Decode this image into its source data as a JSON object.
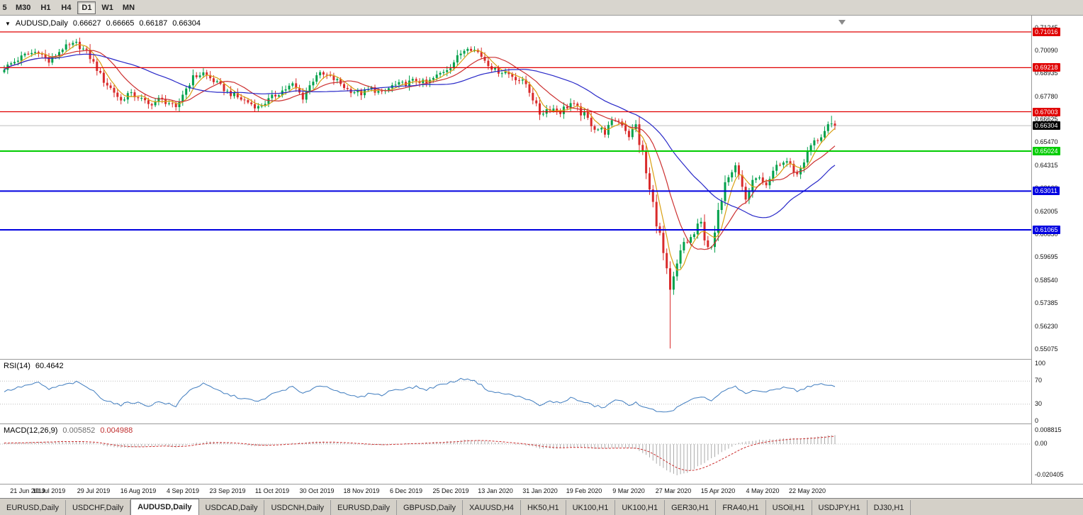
{
  "toolbar": {
    "periods": [
      {
        "label": "5",
        "active": false,
        "partial": true
      },
      {
        "label": "M30",
        "active": false
      },
      {
        "label": "H1",
        "active": false
      },
      {
        "label": "H4",
        "active": false
      },
      {
        "label": "D1",
        "active": true
      },
      {
        "label": "W1",
        "active": false
      },
      {
        "label": "MN",
        "active": false
      }
    ]
  },
  "header": {
    "symbol": "AUDUSD,Daily",
    "open": "0.66627",
    "high": "0.66665",
    "low": "0.66187",
    "close": "0.66304"
  },
  "rsi_header": {
    "name": "RSI(14)",
    "value": "60.4642"
  },
  "macd_header": {
    "name": "MACD(12,26,9)",
    "macd_value": "0.005852",
    "signal_value": "0.004988"
  },
  "tabs": [
    {
      "label": "EURUSD,Daily",
      "active": false
    },
    {
      "label": "USDCHF,Daily",
      "active": false
    },
    {
      "label": "AUDUSD,Daily",
      "active": true
    },
    {
      "label": "USDCAD,Daily",
      "active": false
    },
    {
      "label": "USDCNH,Daily",
      "active": false
    },
    {
      "label": "EURUSD,Daily",
      "active": false
    },
    {
      "label": "GBPUSD,Daily",
      "active": false
    },
    {
      "label": "XAUUSD,H4",
      "active": false
    },
    {
      "label": "HK50,H1",
      "active": false
    },
    {
      "label": "UK100,H1",
      "active": false
    },
    {
      "label": "UK100,H1",
      "active": false
    },
    {
      "label": "GER30,H1",
      "active": false
    },
    {
      "label": "FRA40,H1",
      "active": false
    },
    {
      "label": "USOil,H1",
      "active": false
    },
    {
      "label": "USDJPY,H1",
      "active": false
    },
    {
      "label": "DJ30,H1",
      "active": false
    }
  ],
  "chart_data": {
    "type": "candlestick",
    "symbol": "AUDUSD",
    "timeframe": "Daily",
    "ohlc": {
      "open": 0.66627,
      "high": 0.66665,
      "low": 0.66187,
      "close": 0.66304
    },
    "candle_count": 243,
    "y_axis": {
      "first_tick": 0.71245,
      "tick_step": 0.01155,
      "tick_count": 15
    },
    "x_labels": [
      "21 Jun 2019",
      "10 Jul 2019",
      "29 Jul 2019",
      "16 Aug 2019",
      "4 Sep 2019",
      "23 Sep 2019",
      "11 Oct 2019",
      "30 Oct 2019",
      "18 Nov 2019",
      "6 Dec 2019",
      "25 Dec 2019",
      "13 Jan 2020",
      "31 Jan 2020",
      "19 Feb 2020",
      "9 Mar 2020",
      "27 Mar 2020",
      "15 Apr 2020",
      "4 May 2020",
      "22 May 2020"
    ],
    "hlines": [
      {
        "price": 0.71016,
        "color": "#e00000",
        "width": 1.3
      },
      {
        "price": 0.69218,
        "color": "#e00000",
        "width": 1.3
      },
      {
        "price": 0.67003,
        "color": "#e00000",
        "width": 1.3
      },
      {
        "price": 0.65024,
        "color": "#00cc00",
        "width": 2
      },
      {
        "price": 0.63011,
        "color": "#0000e0",
        "width": 2
      },
      {
        "price": 0.61065,
        "color": "#0000e0",
        "width": 2
      }
    ],
    "bid_price": 0.66304,
    "colors": {
      "up": "#00a14b",
      "down": "#d92b2b",
      "bid_line": "#bdbdbd"
    },
    "moving_averages": [
      {
        "period": 5,
        "color": "#d9a012"
      },
      {
        "period": 13,
        "color": "#cc3030"
      },
      {
        "period": 34,
        "color": "#2828c8"
      }
    ],
    "price_anchors": [
      [
        0,
        0.692
      ],
      [
        6,
        0.6985
      ],
      [
        10,
        0.7005
      ],
      [
        13,
        0.695
      ],
      [
        17,
        0.702
      ],
      [
        21,
        0.7042
      ],
      [
        24,
        0.7
      ],
      [
        26,
        0.6945
      ],
      [
        29,
        0.6855
      ],
      [
        32,
        0.68
      ],
      [
        34,
        0.6755
      ],
      [
        36,
        0.679
      ],
      [
        39,
        0.6775
      ],
      [
        42,
        0.6735
      ],
      [
        45,
        0.6762
      ],
      [
        48,
        0.6745
      ],
      [
        50,
        0.6712
      ],
      [
        52,
        0.679
      ],
      [
        55,
        0.6872
      ],
      [
        58,
        0.6895
      ],
      [
        61,
        0.6855
      ],
      [
        65,
        0.68
      ],
      [
        68,
        0.6772
      ],
      [
        71,
        0.6748
      ],
      [
        74,
        0.6722
      ],
      [
        78,
        0.6772
      ],
      [
        81,
        0.6806
      ],
      [
        84,
        0.6836
      ],
      [
        87,
        0.6772
      ],
      [
        91,
        0.689
      ],
      [
        94,
        0.688
      ],
      [
        97,
        0.6855
      ],
      [
        100,
        0.6812
      ],
      [
        104,
        0.6792
      ],
      [
        107,
        0.6816
      ],
      [
        110,
        0.6792
      ],
      [
        113,
        0.683
      ],
      [
        117,
        0.6842
      ],
      [
        120,
        0.686
      ],
      [
        123,
        0.6842
      ],
      [
        126,
        0.688
      ],
      [
        130,
        0.693
      ],
      [
        133,
        0.6995
      ],
      [
        135,
        0.703
      ],
      [
        138,
        0.7
      ],
      [
        141,
        0.6942
      ],
      [
        143,
        0.6906
      ],
      [
        146,
        0.69
      ],
      [
        149,
        0.687
      ],
      [
        152,
        0.684
      ],
      [
        156,
        0.6692
      ],
      [
        159,
        0.6722
      ],
      [
        162,
        0.6702
      ],
      [
        165,
        0.6742
      ],
      [
        169,
        0.668
      ],
      [
        172,
        0.6622
      ],
      [
        175,
        0.66
      ],
      [
        178,
        0.6662
      ],
      [
        180,
        0.6642
      ],
      [
        182,
        0.6582
      ],
      [
        184,
        0.6625
      ],
      [
        186,
        0.648
      ],
      [
        188,
        0.63
      ],
      [
        190,
        0.616
      ],
      [
        192,
        0.598
      ],
      [
        194,
        0.578
      ],
      [
        196,
        0.592
      ],
      [
        198,
        0.604
      ],
      [
        200,
        0.606
      ],
      [
        203,
        0.613
      ],
      [
        206,
        0.599
      ],
      [
        210,
        0.636
      ],
      [
        213,
        0.644
      ],
      [
        216,
        0.6262
      ],
      [
        219,
        0.638
      ],
      [
        222,
        0.6312
      ],
      [
        225,
        0.643
      ],
      [
        228,
        0.6452
      ],
      [
        231,
        0.6382
      ],
      [
        235,
        0.653
      ],
      [
        238,
        0.658
      ],
      [
        240,
        0.662
      ],
      [
        242,
        0.66304
      ]
    ],
    "wick_overrides": [
      [
        194,
        "low",
        0.551
      ],
      [
        241,
        "high",
        0.668
      ]
    ],
    "rsi": {
      "period": 14,
      "current": 60.4642,
      "color": "#3f7cbf",
      "levels": [
        100,
        70,
        30,
        0
      ],
      "dotted_levels": [
        70,
        30
      ],
      "anchors": [
        [
          0,
          52
        ],
        [
          6,
          62
        ],
        [
          10,
          67
        ],
        [
          13,
          56
        ],
        [
          17,
          63
        ],
        [
          21,
          68
        ],
        [
          24,
          60
        ],
        [
          26,
          52
        ],
        [
          29,
          38
        ],
        [
          32,
          32
        ],
        [
          34,
          27
        ],
        [
          36,
          34
        ],
        [
          39,
          32
        ],
        [
          42,
          27
        ],
        [
          45,
          34
        ],
        [
          48,
          30
        ],
        [
          50,
          25
        ],
        [
          52,
          44
        ],
        [
          55,
          58
        ],
        [
          58,
          65
        ],
        [
          61,
          57
        ],
        [
          65,
          47
        ],
        [
          68,
          42
        ],
        [
          71,
          38
        ],
        [
          74,
          34
        ],
        [
          78,
          47
        ],
        [
          81,
          54
        ],
        [
          84,
          60
        ],
        [
          87,
          47
        ],
        [
          91,
          62
        ],
        [
          94,
          60
        ],
        [
          97,
          54
        ],
        [
          100,
          45
        ],
        [
          104,
          42
        ],
        [
          107,
          50
        ],
        [
          110,
          45
        ],
        [
          113,
          55
        ],
        [
          117,
          57
        ],
        [
          120,
          60
        ],
        [
          123,
          55
        ],
        [
          126,
          62
        ],
        [
          130,
          68
        ],
        [
          133,
          73
        ],
        [
          135,
          75
        ],
        [
          138,
          67
        ],
        [
          141,
          54
        ],
        [
          143,
          50
        ],
        [
          146,
          48
        ],
        [
          149,
          44
        ],
        [
          152,
          40
        ],
        [
          156,
          27
        ],
        [
          159,
          35
        ],
        [
          162,
          32
        ],
        [
          165,
          41
        ],
        [
          169,
          33
        ],
        [
          172,
          27
        ],
        [
          175,
          24
        ],
        [
          178,
          38
        ],
        [
          180,
          34
        ],
        [
          182,
          27
        ],
        [
          184,
          35
        ],
        [
          186,
          24
        ],
        [
          188,
          21
        ],
        [
          190,
          19
        ],
        [
          192,
          17
        ],
        [
          194,
          16
        ],
        [
          196,
          24
        ],
        [
          198,
          30
        ],
        [
          200,
          36
        ],
        [
          203,
          44
        ],
        [
          206,
          36
        ],
        [
          210,
          54
        ],
        [
          213,
          60
        ],
        [
          216,
          48
        ],
        [
          219,
          55
        ],
        [
          222,
          50
        ],
        [
          225,
          57
        ],
        [
          228,
          60
        ],
        [
          231,
          53
        ],
        [
          235,
          62
        ],
        [
          238,
          64
        ],
        [
          240,
          62
        ],
        [
          242,
          60.46
        ]
      ]
    },
    "macd": {
      "fast": 12,
      "slow": 26,
      "signal_period": 9,
      "current_macd": 0.005852,
      "current_signal": 0.004988,
      "hist_color": "#aaaaaa",
      "signal_color": "#cc3030",
      "axis_labels": [
        0.008815,
        0,
        -0.020405
      ],
      "anchors": [
        [
          0,
          0.0006
        ],
        [
          8,
          0.0014
        ],
        [
          16,
          0.0018
        ],
        [
          22,
          0.0016
        ],
        [
          26,
          0.0008
        ],
        [
          30,
          -0.0012
        ],
        [
          34,
          -0.0024
        ],
        [
          39,
          -0.0018
        ],
        [
          45,
          -0.001
        ],
        [
          50,
          -0.002
        ],
        [
          53,
          -0.0006
        ],
        [
          56,
          0.0008
        ],
        [
          59,
          0.0016
        ],
        [
          63,
          0.0012
        ],
        [
          67,
          0.0002
        ],
        [
          71,
          -0.001
        ],
        [
          75,
          -0.0013
        ],
        [
          80,
          -0.0002
        ],
        [
          85,
          0.0008
        ],
        [
          91,
          0.0015
        ],
        [
          95,
          0.0013
        ],
        [
          100,
          0.0004
        ],
        [
          105,
          -0.0005
        ],
        [
          110,
          -0.0005
        ],
        [
          115,
          0.0003
        ],
        [
          120,
          0.0008
        ],
        [
          126,
          0.0013
        ],
        [
          131,
          0.0021
        ],
        [
          135,
          0.0029
        ],
        [
          139,
          0.0023
        ],
        [
          143,
          0.0011
        ],
        [
          148,
          0.0002
        ],
        [
          152,
          -0.0009
        ],
        [
          156,
          -0.0026
        ],
        [
          160,
          -0.0031
        ],
        [
          164,
          -0.0021
        ],
        [
          168,
          -0.0023
        ],
        [
          172,
          -0.0031
        ],
        [
          176,
          -0.0029
        ],
        [
          180,
          -0.0021
        ],
        [
          184,
          -0.0032
        ],
        [
          187,
          -0.0072
        ],
        [
          190,
          -0.0125
        ],
        [
          193,
          -0.0172
        ],
        [
          196,
          -0.0204
        ],
        [
          199,
          -0.0188
        ],
        [
          202,
          -0.0148
        ],
        [
          205,
          -0.0108
        ],
        [
          208,
          -0.0068
        ],
        [
          211,
          -0.0028
        ],
        [
          214,
          0.0006
        ],
        [
          217,
          0.0021
        ],
        [
          220,
          0.0028
        ],
        [
          223,
          0.0031
        ],
        [
          226,
          0.0035
        ],
        [
          229,
          0.0038
        ],
        [
          232,
          0.0036
        ],
        [
          235,
          0.0043
        ],
        [
          238,
          0.0051
        ],
        [
          242,
          0.005852
        ]
      ]
    }
  }
}
